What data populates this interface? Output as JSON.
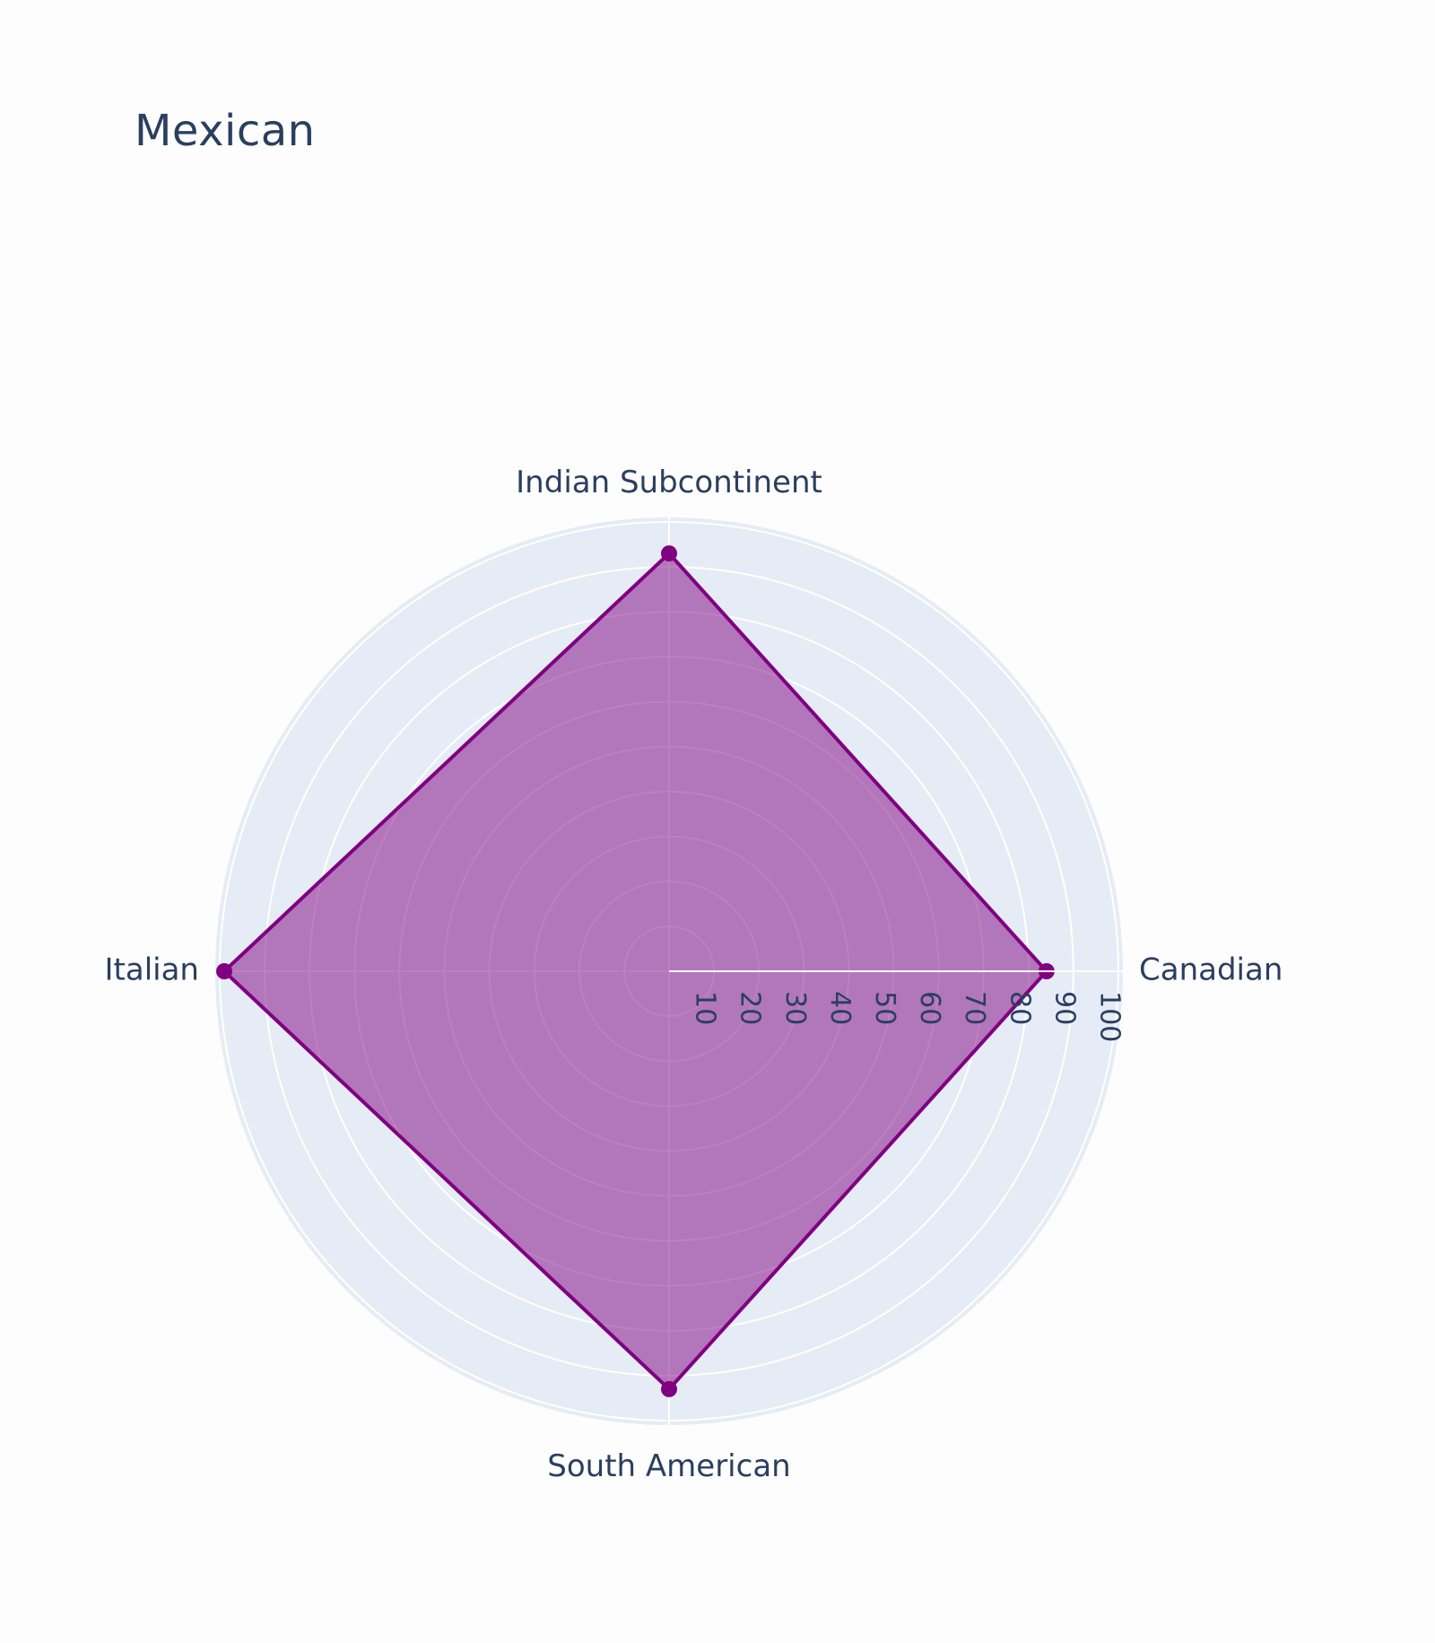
{
  "chart_data": {
    "type": "radar",
    "title": "Mexican",
    "categories": [
      "Canadian",
      "Indian Subcontinent",
      "Italian",
      "South American"
    ],
    "series": [
      {
        "values": [
          84,
          93,
          99,
          93
        ],
        "color": "#800080",
        "fill_color": "rgba(128,0,128,0.5)"
      }
    ],
    "radial_axis": {
      "range": [
        0,
        101
      ],
      "tick_labels": [
        "10",
        "20",
        "30",
        "40",
        "50",
        "60",
        "70",
        "80",
        "90",
        "100"
      ],
      "tick_values": [
        10,
        20,
        30,
        40,
        50,
        60,
        70,
        80,
        90,
        100
      ]
    },
    "colors": {
      "polar_bg": "#e5ecf6",
      "grid": "#ffffff",
      "text": "#2a3f5f",
      "page_bg": "#fdfdfd"
    }
  }
}
